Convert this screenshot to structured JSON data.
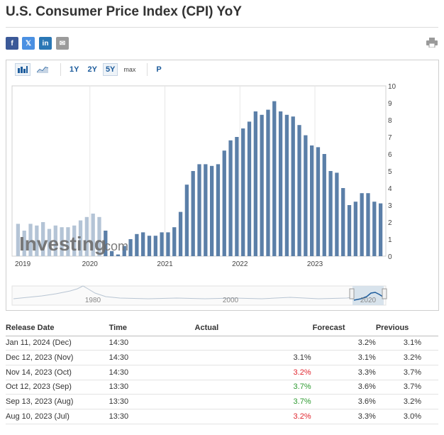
{
  "page": {
    "title": "U.S. Consumer Price Index (CPI) YoY"
  },
  "share": [
    {
      "label": "f",
      "icon": "facebook-icon",
      "color": "#3b5998"
    },
    {
      "label": "𝕏",
      "icon": "x-twitter-icon",
      "color": "#4a90e2"
    },
    {
      "label": "in",
      "icon": "linkedin-icon",
      "color": "#2a77b5"
    },
    {
      "label": "✉",
      "icon": "email-icon",
      "color": "#9b9b9b"
    }
  ],
  "toolbar": {
    "ranges": [
      "1Y",
      "2Y",
      "5Y",
      "max"
    ],
    "active_range": "5Y",
    "p_label": "P"
  },
  "watermark": {
    "brand": "Investing",
    "suffix": ".com"
  },
  "colors": {
    "bar": "#5b7fa8",
    "bar_old": "#b4c4d6",
    "navigator_fill": "#cfdde9",
    "accent": "#1d5c9c"
  },
  "chart_data": {
    "type": "bar",
    "ylim": [
      0,
      10
    ],
    "y_ticks": [
      "0",
      "1",
      "2",
      "3",
      "4",
      "5",
      "6",
      "7",
      "8",
      "9",
      "10"
    ],
    "x_ticks": [
      "2019",
      "2020",
      "2021",
      "2022",
      "2023"
    ],
    "values": [
      1.9,
      1.5,
      1.9,
      1.8,
      2.0,
      1.6,
      1.8,
      1.7,
      1.7,
      1.8,
      2.1,
      2.3,
      2.5,
      2.3,
      1.5,
      0.3,
      0.1,
      0.6,
      1.0,
      1.3,
      1.4,
      1.2,
      1.2,
      1.4,
      1.4,
      1.7,
      2.6,
      4.2,
      5.0,
      5.4,
      5.4,
      5.3,
      5.4,
      6.2,
      6.8,
      7.0,
      7.5,
      7.9,
      8.5,
      8.3,
      8.6,
      9.1,
      8.5,
      8.3,
      8.2,
      7.7,
      7.1,
      6.5,
      6.4,
      6.0,
      5.0,
      4.9,
      4.0,
      3.0,
      3.2,
      3.7,
      3.7,
      3.2,
      3.1
    ],
    "navigator_ticks": [
      "1980",
      "2000",
      "2020"
    ]
  },
  "table": {
    "headers": {
      "date": "Release Date",
      "time": "Time",
      "actual": "Actual",
      "forecast": "Forecast",
      "previous": "Previous"
    },
    "rows": [
      {
        "date": "Jan 11, 2024 (Dec)",
        "time": "14:30",
        "actual": "",
        "actual_status": "",
        "forecast": "3.2%",
        "previous": "3.1%"
      },
      {
        "date": "Dec 12, 2023 (Nov)",
        "time": "14:30",
        "actual": "3.1%",
        "actual_status": "",
        "forecast": "3.1%",
        "previous": "3.2%"
      },
      {
        "date": "Nov 14, 2023 (Oct)",
        "time": "14:30",
        "actual": "3.2%",
        "actual_status": "red",
        "forecast": "3.3%",
        "previous": "3.7%"
      },
      {
        "date": "Oct 12, 2023 (Sep)",
        "time": "13:30",
        "actual": "3.7%",
        "actual_status": "green",
        "forecast": "3.6%",
        "previous": "3.7%"
      },
      {
        "date": "Sep 13, 2023 (Aug)",
        "time": "13:30",
        "actual": "3.7%",
        "actual_status": "green",
        "forecast": "3.6%",
        "previous": "3.2%"
      },
      {
        "date": "Aug 10, 2023 (Jul)",
        "time": "13:30",
        "actual": "3.2%",
        "actual_status": "red",
        "forecast": "3.3%",
        "previous": "3.0%"
      }
    ]
  }
}
